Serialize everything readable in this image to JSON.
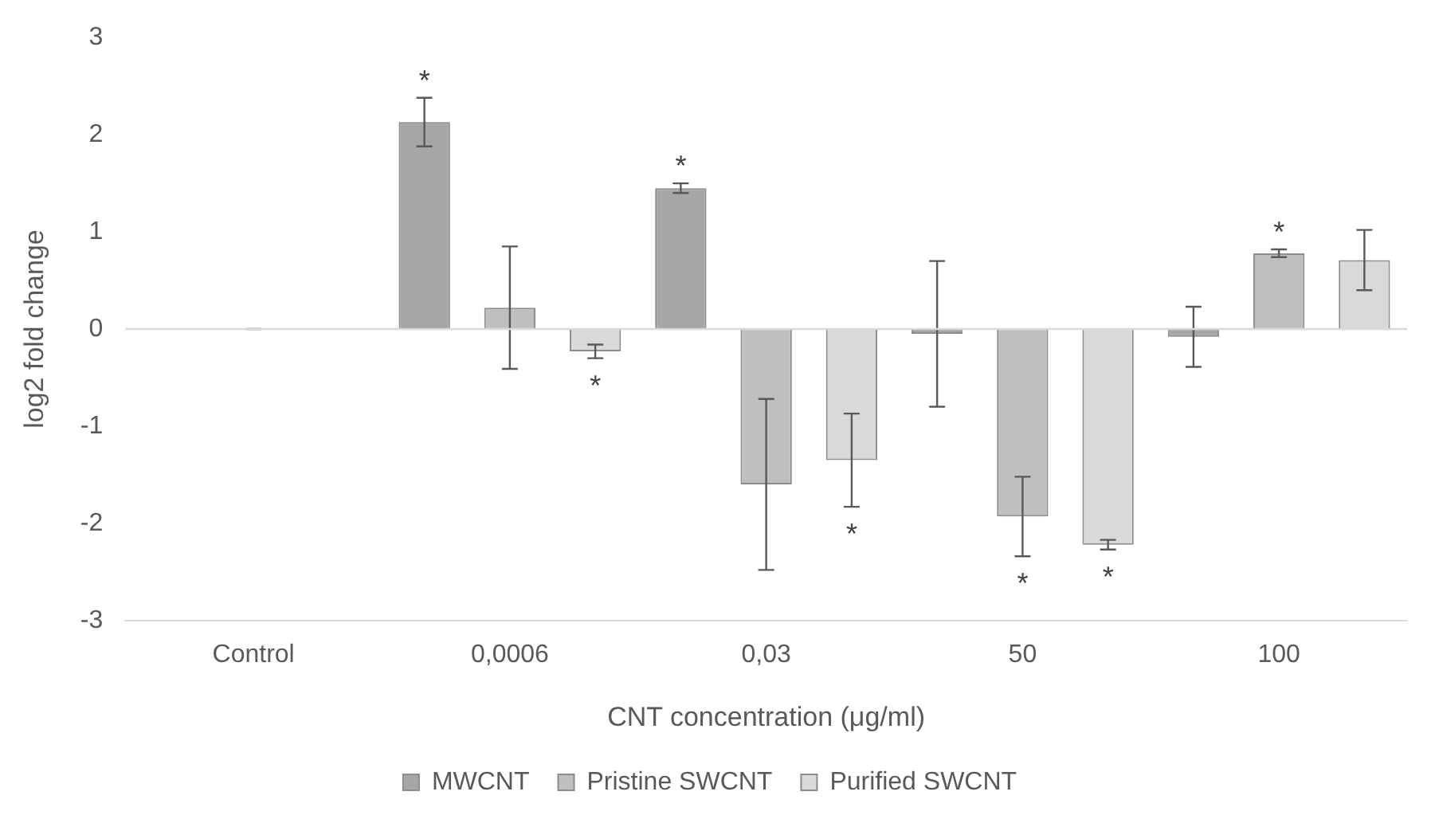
{
  "chart_data": {
    "type": "bar",
    "xlabel": "CNT concentration (μg/ml)",
    "ylabel": "log2 fold change",
    "categories": [
      "Control",
      "0,0006",
      "0,03",
      "50",
      "100"
    ],
    "series": [
      {
        "name": "MWCNT",
        "color": "#a6a6a6",
        "values": [
          null,
          2.13,
          1.45,
          -0.05,
          -0.08
        ],
        "errors": [
          null,
          0.25,
          0.05,
          0.75,
          0.31
        ],
        "value_labels": [
          null,
          "*",
          "*",
          null,
          null
        ]
      },
      {
        "name": "Pristine SWCNT",
        "color": "#bfbfbf",
        "values": [
          0,
          0.22,
          -1.6,
          -1.93,
          0.78
        ],
        "errors": [
          0,
          0.63,
          0.88,
          0.41,
          0.04
        ],
        "value_labels": [
          null,
          null,
          null,
          "*",
          "*"
        ]
      },
      {
        "name": "Purified SWCNT",
        "color": "#d9d9d9",
        "values": [
          null,
          -0.23,
          -1.35,
          -2.22,
          0.71
        ],
        "errors": [
          null,
          0.07,
          0.48,
          0.05,
          0.31
        ],
        "value_labels": [
          null,
          "*",
          "*",
          "*",
          null
        ]
      }
    ],
    "ylim": [
      -3,
      3
    ],
    "yticks": [
      -3,
      -2,
      -1,
      0,
      1,
      2,
      3
    ],
    "grid": false,
    "legend": "bottom",
    "ref_lines": [
      {
        "axis": "y",
        "value": 0,
        "color": "#d9d9d9"
      }
    ]
  }
}
